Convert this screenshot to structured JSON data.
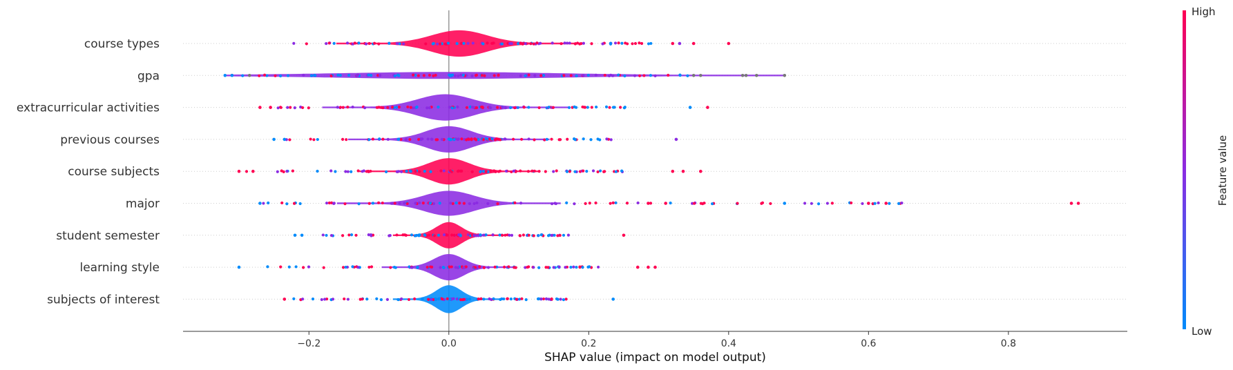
{
  "chart_data": {
    "type": "scatter",
    "subtype": "shap-violin-summary",
    "xlabel": "SHAP value (impact on model output)",
    "xlim": [
      -0.38,
      0.97
    ],
    "x_ticks": [
      -0.2,
      0.0,
      0.2,
      0.4,
      0.6,
      0.8
    ],
    "x_tick_labels": [
      "−0.2",
      "0.0",
      "0.2",
      "0.4",
      "0.6",
      "0.8"
    ],
    "zero_line": 0.0,
    "colorbar": {
      "label": "Feature value",
      "high_label": "High",
      "low_label": "Low",
      "high_color": "#ff0052",
      "mid_color": "#8b2be2",
      "low_color": "#008bfb"
    },
    "features": [
      {
        "name": "course types",
        "min": -0.23,
        "max": 0.4,
        "peak": 0.015,
        "spread": 0.055,
        "height": 0.85,
        "dominant": "high",
        "outliers": [
          {
            "x": 0.4,
            "c": "high"
          },
          {
            "x": 0.35,
            "c": "high"
          },
          {
            "x": 0.33,
            "c": "mix"
          },
          {
            "x": 0.32,
            "c": "high"
          }
        ]
      },
      {
        "name": "gpa",
        "min": -0.32,
        "max": 0.48,
        "peak": 0.0,
        "spread": 0.2,
        "height": 0.18,
        "dominant": "mix",
        "outliers": [
          {
            "x": -0.32,
            "c": "low"
          },
          {
            "x": -0.31,
            "c": "low"
          },
          {
            "x": -0.285,
            "c": "grey"
          },
          {
            "x": 0.42,
            "c": "grey"
          },
          {
            "x": 0.425,
            "c": "grey"
          },
          {
            "x": 0.44,
            "c": "grey"
          },
          {
            "x": 0.48,
            "c": "grey"
          },
          {
            "x": 0.36,
            "c": "grey"
          },
          {
            "x": 0.35,
            "c": "grey"
          }
        ]
      },
      {
        "name": "extracurricular activities",
        "min": -0.27,
        "max": 0.37,
        "peak": -0.005,
        "spread": 0.055,
        "height": 0.85,
        "dominant": "mid",
        "outliers": [
          {
            "x": 0.37,
            "c": "high"
          },
          {
            "x": 0.345,
            "c": "low"
          },
          {
            "x": -0.27,
            "c": "high"
          },
          {
            "x": -0.255,
            "c": "high"
          }
        ]
      },
      {
        "name": "previous courses",
        "min": -0.25,
        "max": 0.33,
        "peak": 0.0,
        "spread": 0.045,
        "height": 0.85,
        "dominant": "mid",
        "outliers": [
          {
            "x": 0.325,
            "c": "mix"
          },
          {
            "x": -0.25,
            "c": "low"
          },
          {
            "x": -0.235,
            "c": "low"
          }
        ]
      },
      {
        "name": "course subjects",
        "min": -0.3,
        "max": 0.36,
        "peak": 0.0,
        "spread": 0.04,
        "height": 0.85,
        "dominant": "high",
        "outliers": [
          {
            "x": 0.36,
            "c": "high"
          },
          {
            "x": 0.335,
            "c": "high"
          },
          {
            "x": 0.32,
            "c": "high"
          },
          {
            "x": -0.3,
            "c": "high"
          },
          {
            "x": -0.28,
            "c": "high"
          }
        ]
      },
      {
        "name": "major",
        "min": -0.27,
        "max": 0.9,
        "peak": 0.0,
        "spread": 0.05,
        "height": 0.8,
        "dominant": "mid",
        "outliers": [
          {
            "x": 0.9,
            "c": "high"
          },
          {
            "x": 0.89,
            "c": "high"
          },
          {
            "x": 0.625,
            "c": "high"
          },
          {
            "x": 0.6,
            "c": "high"
          },
          {
            "x": 0.48,
            "c": "low"
          },
          {
            "x": 0.31,
            "c": "high"
          },
          {
            "x": 0.285,
            "c": "high"
          },
          {
            "x": -0.27,
            "c": "low"
          }
        ]
      },
      {
        "name": "student semester",
        "min": -0.22,
        "max": 0.25,
        "peak": 0.0,
        "spread": 0.025,
        "height": 0.85,
        "dominant": "high",
        "outliers": [
          {
            "x": 0.25,
            "c": "high"
          },
          {
            "x": -0.22,
            "c": "low"
          },
          {
            "x": -0.21,
            "c": "low"
          }
        ]
      },
      {
        "name": "learning style",
        "min": -0.3,
        "max": 0.3,
        "peak": 0.0,
        "spread": 0.03,
        "height": 0.85,
        "dominant": "mid",
        "outliers": [
          {
            "x": -0.3,
            "c": "low"
          },
          {
            "x": 0.295,
            "c": "high"
          },
          {
            "x": 0.285,
            "c": "high"
          },
          {
            "x": 0.27,
            "c": "high"
          }
        ]
      },
      {
        "name": "subjects of interest",
        "min": -0.235,
        "max": 0.235,
        "peak": 0.0,
        "spread": 0.025,
        "height": 0.9,
        "dominant": "low",
        "outliers": [
          {
            "x": 0.235,
            "c": "low"
          },
          {
            "x": -0.235,
            "c": "high"
          }
        ]
      }
    ]
  }
}
